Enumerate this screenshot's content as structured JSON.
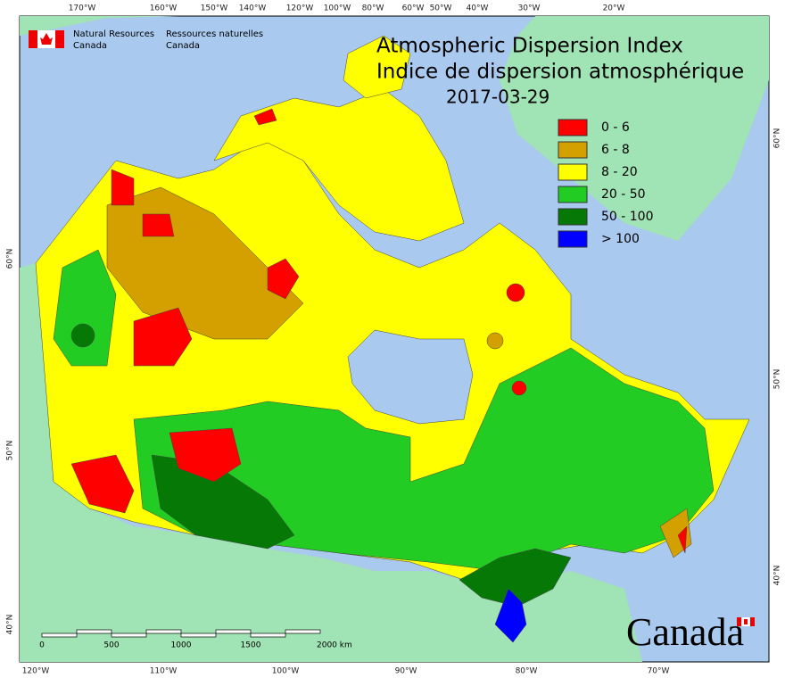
{
  "header": {
    "title": "Atmospheric Dispersion Index",
    "subtitle": "Indice de dispersion atmosphérique",
    "date": "2017-03-29"
  },
  "agency": {
    "en": [
      "Natural Resources",
      "Canada"
    ],
    "fr": [
      "Ressources naturelles",
      "Canada"
    ]
  },
  "legend": [
    {
      "label": "0 - 6",
      "color": "#ff0000"
    },
    {
      "label": "6 - 8",
      "color": "#d4a000"
    },
    {
      "label": "8 - 20",
      "color": "#ffff00"
    },
    {
      "label": "20 - 50",
      "color": "#22cc22"
    },
    {
      "label": "50 - 100",
      "color": "#067806"
    },
    {
      "label": "> 100",
      "color": "#0000ff"
    }
  ],
  "graticule": {
    "top": [
      "170°W",
      "160°W",
      "150°W",
      "140°W",
      "120°W",
      "100°W",
      "80°W",
      "60°W",
      "50°W",
      "40°W",
      "30°W",
      "20°W"
    ],
    "bottom": [
      "120°W",
      "110°W",
      "100°W",
      "90°W",
      "80°W",
      "70°W"
    ],
    "left": [
      "60°N",
      "50°N",
      "40°N"
    ],
    "right": [
      "60°N",
      "50°N",
      "40°N"
    ]
  },
  "scale_bar": {
    "labels": [
      "0",
      "500",
      "1000",
      "1500",
      "2000 km"
    ]
  },
  "wordmark": "Canada"
}
